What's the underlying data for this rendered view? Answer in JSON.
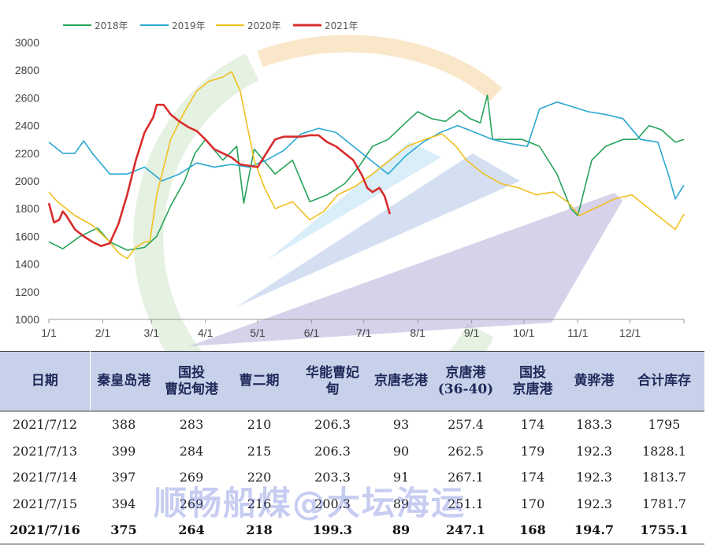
{
  "chart_data": {
    "type": "line",
    "title": "",
    "xlabel": "",
    "ylabel": "",
    "ylim": [
      1000,
      3000
    ],
    "yticks": [
      1000,
      1200,
      1400,
      1600,
      1800,
      2000,
      2200,
      2400,
      2600,
      2800,
      3000
    ],
    "xtick_labels": [
      "1/1",
      "2/1",
      "3/1",
      "4/1",
      "5/1",
      "6/1",
      "7/1",
      "8/1",
      "9/1",
      "10/1",
      "11/1",
      "12/1"
    ],
    "x_day_of_year": [
      0,
      31,
      59,
      90,
      120,
      151,
      181,
      212,
      243,
      273,
      304,
      334,
      365
    ],
    "legend_position": "top-left",
    "series": [
      {
        "name": "2018年",
        "color": "#27a35a",
        "x": [
          0,
          8,
          18,
          28,
          35,
          45,
          55,
          62,
          70,
          78,
          84,
          90,
          100,
          108,
          112,
          118,
          120,
          130,
          140,
          150,
          160,
          170,
          178,
          186,
          195,
          205,
          212,
          220,
          228,
          236,
          242,
          248,
          252,
          255,
          262,
          272,
          282,
          292,
          300,
          304,
          312,
          320,
          330,
          338,
          345,
          352,
          360,
          365
        ],
        "y": [
          1560,
          1510,
          1600,
          1660,
          1560,
          1500,
          1520,
          1600,
          1820,
          2000,
          2200,
          2300,
          2150,
          2250,
          1840,
          2230,
          2200,
          2050,
          2150,
          1850,
          1900,
          1980,
          2100,
          2250,
          2300,
          2420,
          2500,
          2450,
          2430,
          2510,
          2450,
          2420,
          2620,
          2300,
          2300,
          2300,
          2250,
          2050,
          1800,
          1750,
          2150,
          2250,
          2300,
          2300,
          2400,
          2370,
          2280,
          2300
        ]
      },
      {
        "name": "2019年",
        "color": "#2aa8d2",
        "x": [
          0,
          8,
          15,
          20,
          25,
          35,
          45,
          55,
          65,
          75,
          85,
          95,
          105,
          115,
          125,
          135,
          145,
          155,
          165,
          175,
          185,
          195,
          205,
          215,
          225,
          235,
          245,
          255,
          265,
          275,
          282,
          292,
          300,
          310,
          320,
          330,
          340,
          350,
          356,
          360,
          365
        ],
        "y": [
          2280,
          2200,
          2200,
          2290,
          2200,
          2050,
          2050,
          2100,
          2000,
          2050,
          2130,
          2100,
          2120,
          2100,
          2150,
          2220,
          2340,
          2380,
          2350,
          2250,
          2150,
          2050,
          2180,
          2280,
          2350,
          2400,
          2350,
          2300,
          2270,
          2250,
          2520,
          2570,
          2540,
          2500,
          2480,
          2450,
          2300,
          2280,
          2050,
          1870,
          1970
        ]
      },
      {
        "name": "2020年",
        "color": "#f0c020",
        "x": [
          0,
          5,
          15,
          25,
          35,
          40,
          45,
          50,
          55,
          58,
          62,
          70,
          78,
          85,
          92,
          100,
          105,
          110,
          114,
          118,
          124,
          130,
          140,
          150,
          158,
          166,
          176,
          186,
          196,
          206,
          216,
          226,
          234,
          240,
          250,
          260,
          270,
          280,
          290,
          298,
          305,
          315,
          325,
          335,
          345,
          355,
          360,
          365
        ],
        "y": [
          1920,
          1850,
          1750,
          1680,
          1560,
          1480,
          1440,
          1520,
          1560,
          1560,
          1900,
          2300,
          2500,
          2650,
          2720,
          2750,
          2790,
          2650,
          2400,
          2150,
          1950,
          1800,
          1850,
          1720,
          1780,
          1900,
          1960,
          2050,
          2150,
          2250,
          2300,
          2340,
          2250,
          2150,
          2050,
          1980,
          1950,
          1900,
          1920,
          1850,
          1750,
          1810,
          1870,
          1900,
          1800,
          1700,
          1650,
          1760
        ]
      },
      {
        "name": "2021年",
        "color": "#d82d2d",
        "x": [
          0,
          3,
          6,
          8,
          10,
          15,
          20,
          25,
          30,
          35,
          40,
          45,
          50,
          55,
          60,
          62,
          66,
          70,
          75,
          80,
          85,
          90,
          95,
          100,
          105,
          110,
          115,
          120,
          125,
          130,
          135,
          140,
          145,
          150,
          155,
          160,
          165,
          170,
          175,
          180,
          183,
          186,
          190,
          193,
          196
        ],
        "y": [
          1840,
          1700,
          1720,
          1780,
          1750,
          1650,
          1600,
          1560,
          1530,
          1550,
          1690,
          1900,
          2150,
          2350,
          2460,
          2550,
          2550,
          2480,
          2430,
          2390,
          2360,
          2300,
          2230,
          2200,
          2170,
          2120,
          2110,
          2100,
          2200,
          2300,
          2320,
          2320,
          2320,
          2330,
          2330,
          2280,
          2250,
          2200,
          2150,
          2040,
          1950,
          1920,
          1950,
          1890,
          1760
        ]
      }
    ]
  },
  "table": {
    "headers": [
      "日期",
      "秦皇岛港",
      "国投\n曹妃甸港",
      "曹二期",
      "华能曹妃\n甸",
      "京唐老港",
      "京唐港\n(36-40)",
      "国投\n京唐港",
      "黄骅港",
      "合计库存"
    ],
    "rows": [
      [
        "2021/7/12",
        "388",
        "283",
        "210",
        "206.3",
        "93",
        "257.4",
        "174",
        "183.3",
        "1795"
      ],
      [
        "2021/7/13",
        "399",
        "284",
        "215",
        "206.3",
        "90",
        "262.5",
        "179",
        "192.3",
        "1828.1"
      ],
      [
        "2021/7/14",
        "397",
        "269",
        "220",
        "203.3",
        "91",
        "267.1",
        "174",
        "192.3",
        "1813.7"
      ],
      [
        "2021/7/15",
        "394",
        "269",
        "216",
        "200.3",
        "89",
        "251.1",
        "170",
        "192.3",
        "1781.7"
      ],
      [
        "2021/7/16",
        "375",
        "264",
        "218",
        "199.3",
        "89",
        "247.1",
        "168",
        "194.7",
        "1755.1"
      ]
    ]
  },
  "watermark": "顺畅船煤@大坛海运"
}
